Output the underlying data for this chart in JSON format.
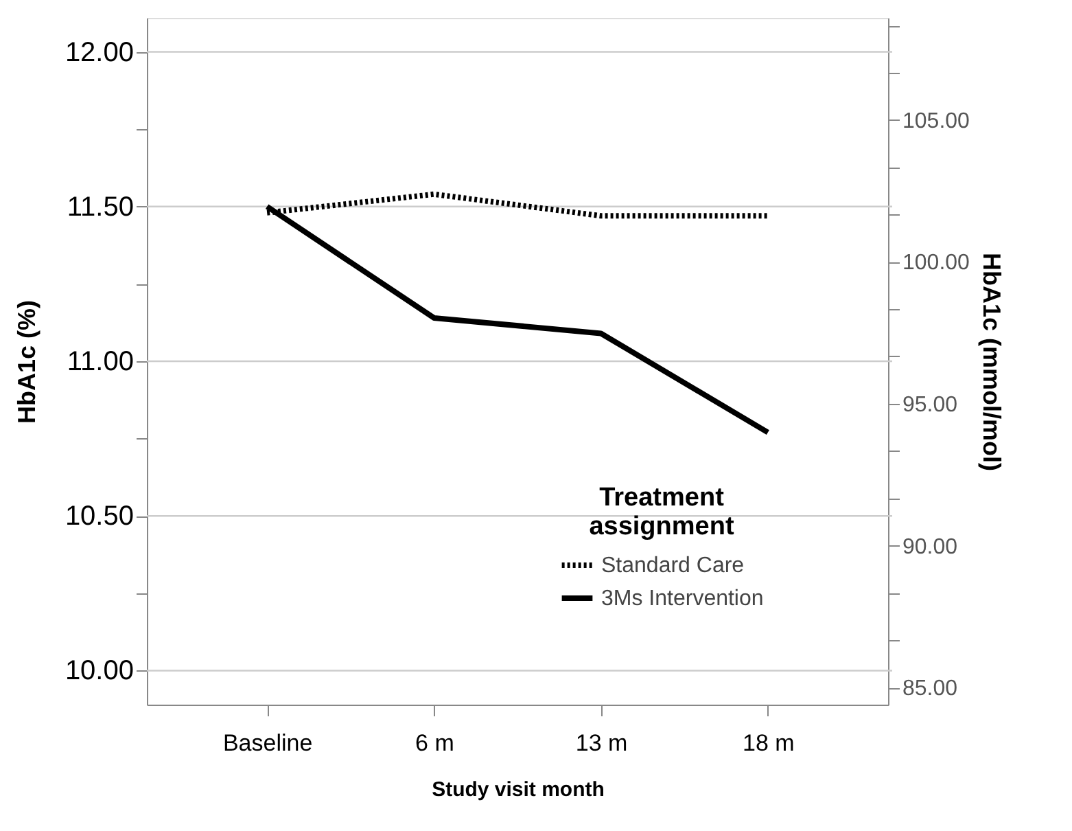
{
  "chart_data": {
    "type": "line",
    "xlabel": "Study visit month",
    "ylabel": "HbA1c (%)",
    "y2label": "HbA1c (mmol/mol)",
    "legend_title": "Treatment\nassignment",
    "legend": "bottom right",
    "grid": "y",
    "marker": "none",
    "categories": [
      "Baseline",
      "6 m",
      "13 m",
      "18 m"
    ],
    "series": [
      {
        "name": "Standard Care",
        "color": "#000000",
        "line_style": "dotted",
        "values": [
          11.48,
          11.54,
          11.47,
          11.47
        ]
      },
      {
        "name": "3Ms Intervention",
        "color": "#000000",
        "line_style": "solid",
        "values": [
          11.5,
          11.14,
          11.09,
          10.77
        ]
      }
    ],
    "ylim": [
      9.89,
      12.11
    ],
    "yticks": [
      {
        "value": 10,
        "label": "10.00"
      },
      {
        "value": 10.25,
        "label": null
      },
      {
        "value": 10.5,
        "label": "10.50"
      },
      {
        "value": 10.75,
        "label": null
      },
      {
        "value": 11,
        "label": "11.00"
      },
      {
        "value": 11.25,
        "label": null
      },
      {
        "value": 11.5,
        "label": "11.50"
      },
      {
        "value": 11.75,
        "label": null
      },
      {
        "value": 12,
        "label": "12.00"
      }
    ],
    "y2lim": [
      84.4,
      108.6
    ],
    "y2ticks": [
      {
        "value": 85,
        "label": "85.00"
      },
      {
        "value": 86.67,
        "label": null
      },
      {
        "value": 88.33,
        "label": null
      },
      {
        "value": 90,
        "label": "90.00"
      },
      {
        "value": 91.67,
        "label": null
      },
      {
        "value": 93.33,
        "label": null
      },
      {
        "value": 95,
        "label": "95.00"
      },
      {
        "value": 96.67,
        "label": null
      },
      {
        "value": 98.33,
        "label": null
      },
      {
        "value": 100,
        "label": "100.00"
      },
      {
        "value": 101.67,
        "label": null
      },
      {
        "value": 103.33,
        "label": null
      },
      {
        "value": 105,
        "label": "105.00"
      },
      {
        "value": 106.67,
        "label": null
      },
      {
        "value": 108.33,
        "label": null
      }
    ]
  }
}
